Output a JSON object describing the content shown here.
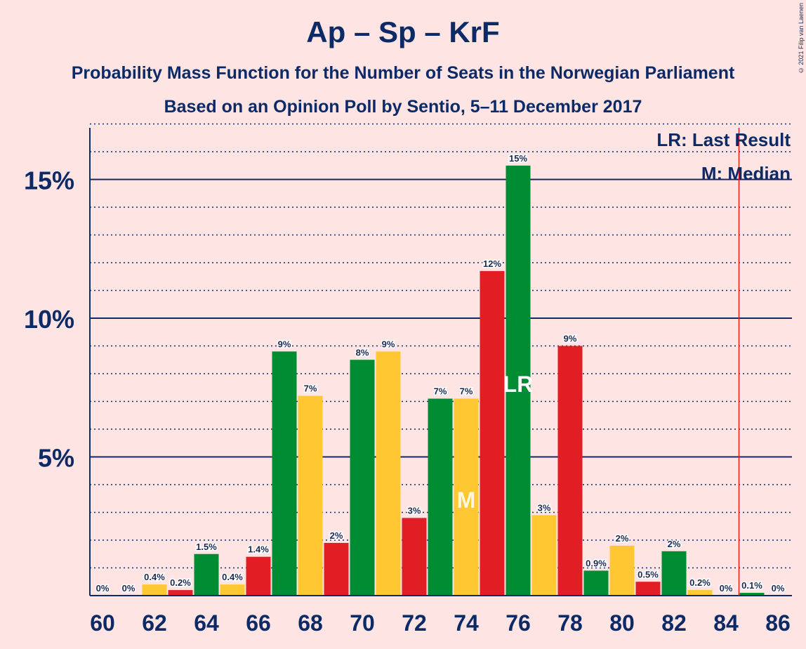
{
  "title": "Ap – Sp – KrF",
  "subtitle": "Probability Mass Function for the Number of Seats in the Norwegian Parliament",
  "subtitle2": "Based on an Opinion Poll by Sentio, 5–11 December 2017",
  "copyright": "© 2021 Filip van Laenen",
  "legend": {
    "lr": "LR: Last Result",
    "m": "M: Median"
  },
  "colors": {
    "green": "#008c32",
    "yellow": "#ffc832",
    "red": "#e01e24",
    "axis": "#0c2a66",
    "background": "#ffe4e4",
    "majority_line": "#e01e24"
  },
  "chart_data": {
    "type": "bar",
    "title": "Ap – Sp – KrF",
    "x": [
      60,
      61,
      62,
      63,
      64,
      65,
      66,
      67,
      68,
      69,
      70,
      71,
      72,
      73,
      74,
      75,
      76,
      77,
      78,
      79,
      80,
      81,
      82,
      83,
      84,
      85,
      86
    ],
    "values": [
      0,
      0,
      0.4,
      0.2,
      1.5,
      0.4,
      1.4,
      8.8,
      7.2,
      1.9,
      8.5,
      8.8,
      2.8,
      7.1,
      7.1,
      11.7,
      15.5,
      2.9,
      9.0,
      0.9,
      1.8,
      0.5,
      1.6,
      0.2,
      0,
      0.1,
      0
    ],
    "labels": [
      "0%",
      "0%",
      "0.4%",
      "0.2%",
      "1.5%",
      "0.4%",
      "1.4%",
      "9%",
      "7%",
      "2%",
      "8%",
      "9%",
      "3%",
      "7%",
      "7%",
      "12%",
      "15%",
      "3%",
      "9%",
      "0.9%",
      "2%",
      "0.5%",
      "2%",
      "0.2%",
      "0%",
      "0.1%",
      "0%"
    ],
    "bar_colors": [
      "green",
      "yellow",
      "yellow",
      "red",
      "green",
      "yellow",
      "red",
      "green",
      "yellow",
      "red",
      "green",
      "yellow",
      "red",
      "green",
      "yellow",
      "red",
      "green",
      "yellow",
      "red",
      "green",
      "yellow",
      "red",
      "green",
      "yellow",
      "red",
      "green",
      "yellow"
    ],
    "x_ticks": [
      60,
      62,
      64,
      66,
      68,
      70,
      72,
      74,
      76,
      78,
      80,
      82,
      84,
      86
    ],
    "x_tick_labels": [
      "60",
      "62",
      "64",
      "66",
      "68",
      "70",
      "72",
      "74",
      "76",
      "78",
      "80",
      "82",
      "84",
      "86"
    ],
    "y_ticks": [
      5,
      10,
      15
    ],
    "y_tick_labels": [
      "5%",
      "10%",
      "15%"
    ],
    "ylim": [
      0,
      17
    ],
    "gridlines": "dotted every 1%, solid at 5%",
    "markers": [
      {
        "x": 76,
        "text": "LR"
      },
      {
        "x": 74,
        "text": "M"
      }
    ],
    "majority_line_x": 84.5
  }
}
